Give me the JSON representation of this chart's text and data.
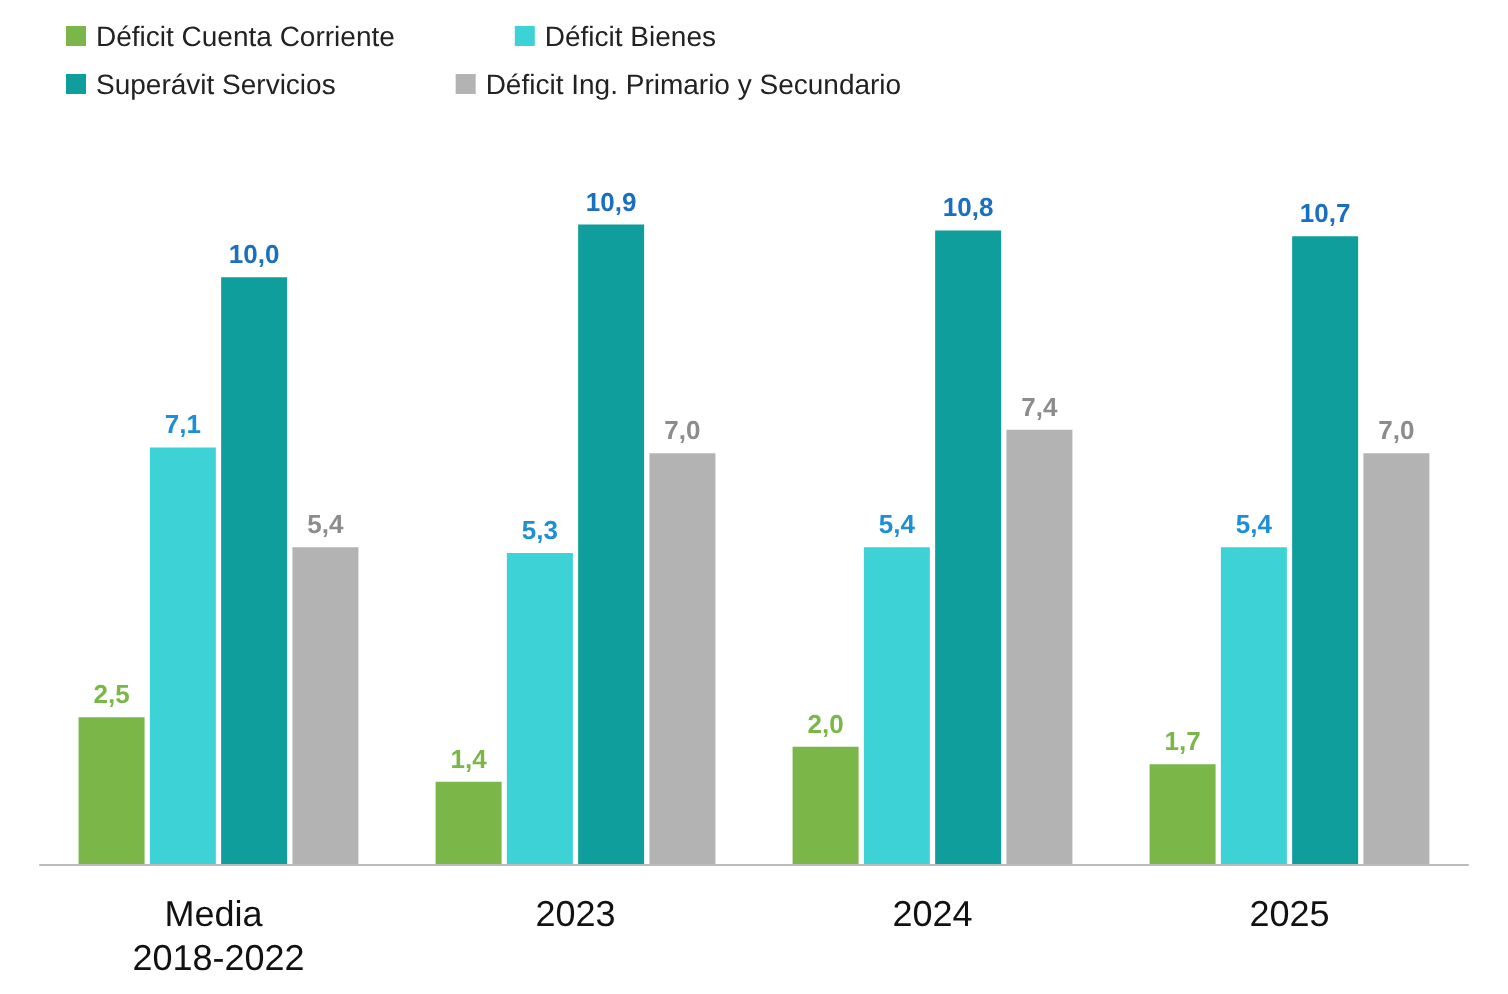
{
  "chart_data": {
    "type": "bar",
    "categories": [
      "Media 2018-2022",
      "2023",
      "2024",
      "2025"
    ],
    "series": [
      {
        "name": "Déficit Cuenta Corriente",
        "color": "#7ab648",
        "values": [
          2.5,
          1.4,
          2.0,
          1.7
        ],
        "value_labels": [
          "2,5",
          "1,4",
          "2,0",
          "1,7"
        ]
      },
      {
        "name": "Déficit Bienes",
        "color": "#3dd3d6",
        "values": [
          7.1,
          5.3,
          5.4,
          5.4
        ],
        "value_labels": [
          "7,1",
          "5,3",
          "5,4",
          "5,4"
        ]
      },
      {
        "name": "Superávit Servicios",
        "color": "#109e9c",
        "values": [
          10.0,
          10.9,
          10.8,
          10.7
        ],
        "value_labels": [
          "10,0",
          "10,9",
          "10,8",
          "10,7"
        ]
      },
      {
        "name": "Déficit Ing. Primario y Secundario",
        "color": "#b3b3b3",
        "values": [
          5.4,
          7.0,
          7.4,
          7.0
        ],
        "value_labels": [
          "5,4",
          "7,0",
          "7,4",
          "7,0"
        ]
      }
    ],
    "legend": "top"
  }
}
